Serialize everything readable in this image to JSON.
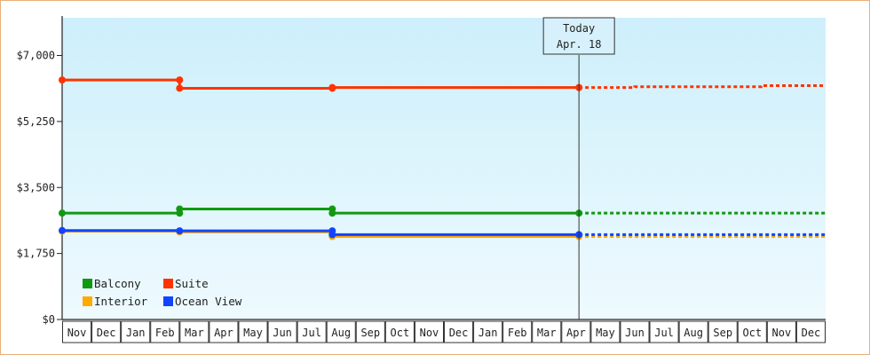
{
  "chart_data": {
    "type": "line",
    "ylim": [
      0,
      8000
    ],
    "y_ticks": [
      0,
      1750,
      3500,
      5250,
      7000
    ],
    "y_tick_labels": [
      "$0",
      "$1,750",
      "$3,500",
      "$5,250",
      "$7,000"
    ],
    "x_tick_labels": [
      "Nov",
      "Dec",
      "Jan",
      "Feb",
      "Mar",
      "Apr",
      "May",
      "Jun",
      "Jul",
      "Aug",
      "Sep",
      "Oct",
      "Nov",
      "Dec",
      "Jan",
      "Feb",
      "Mar",
      "Apr",
      "May",
      "Jun",
      "Jul",
      "Aug",
      "Sep",
      "Oct",
      "Nov",
      "Dec"
    ],
    "today": {
      "title": "Today",
      "date": "Apr. 18",
      "x": 17.6
    },
    "grid": false,
    "legend_placement": "bottom-left",
    "series": [
      {
        "name": "Suite",
        "color": "#ff3300",
        "points": [
          [
            0,
            6350
          ],
          [
            4,
            6350
          ],
          [
            4,
            6130
          ],
          [
            9.2,
            6130
          ],
          [
            9.2,
            6150
          ],
          [
            17.6,
            6150
          ]
        ],
        "markers": [
          0,
          4,
          4,
          9.2,
          9.2,
          17.6
        ],
        "marker_values": [
          6350,
          6350,
          6130,
          6130,
          6150,
          6150
        ],
        "forecast": [
          [
            17.6,
            6150
          ],
          [
            19.5,
            6150
          ],
          [
            19.5,
            6170
          ],
          [
            23.8,
            6170
          ],
          [
            23.8,
            6200
          ],
          [
            26,
            6200
          ]
        ]
      },
      {
        "name": "Balcony",
        "color": "#119911",
        "points": [
          [
            0,
            2820
          ],
          [
            4,
            2820
          ],
          [
            4,
            2930
          ],
          [
            9.2,
            2930
          ],
          [
            9.2,
            2820
          ],
          [
            17.6,
            2820
          ]
        ],
        "markers": [
          0,
          4,
          4,
          9.2,
          9.2,
          17.6
        ],
        "marker_values": [
          2820,
          2820,
          2930,
          2930,
          2820,
          2820
        ],
        "forecast": [
          [
            17.6,
            2820
          ],
          [
            26,
            2820
          ]
        ]
      },
      {
        "name": "Interior",
        "color": "#ffaa00",
        "points": [
          [
            0,
            2340
          ],
          [
            4,
            2340
          ],
          [
            4,
            2320
          ],
          [
            9.2,
            2320
          ],
          [
            9.2,
            2200
          ],
          [
            17.6,
            2200
          ]
        ],
        "markers": [
          0,
          4,
          9.2,
          17.6
        ],
        "marker_values": [
          2340,
          2320,
          2200,
          2200
        ],
        "forecast": [
          [
            17.6,
            2200
          ],
          [
            26,
            2200
          ]
        ]
      },
      {
        "name": "Ocean View",
        "color": "#1144ff",
        "points": [
          [
            0,
            2360
          ],
          [
            4,
            2360
          ],
          [
            4,
            2350
          ],
          [
            9.2,
            2350
          ],
          [
            9.2,
            2250
          ],
          [
            17.6,
            2250
          ]
        ],
        "markers": [
          0,
          4,
          9.2,
          9.2,
          17.6
        ],
        "marker_values": [
          2360,
          2350,
          2350,
          2250,
          2250
        ],
        "forecast": [
          [
            17.6,
            2250
          ],
          [
            26,
            2250
          ]
        ]
      }
    ],
    "legend": [
      {
        "name": "Balcony",
        "color": "#119911"
      },
      {
        "name": "Suite",
        "color": "#ff3300"
      },
      {
        "name": "Interior",
        "color": "#ffaa00"
      },
      {
        "name": "Ocean View",
        "color": "#1144ff"
      }
    ]
  }
}
